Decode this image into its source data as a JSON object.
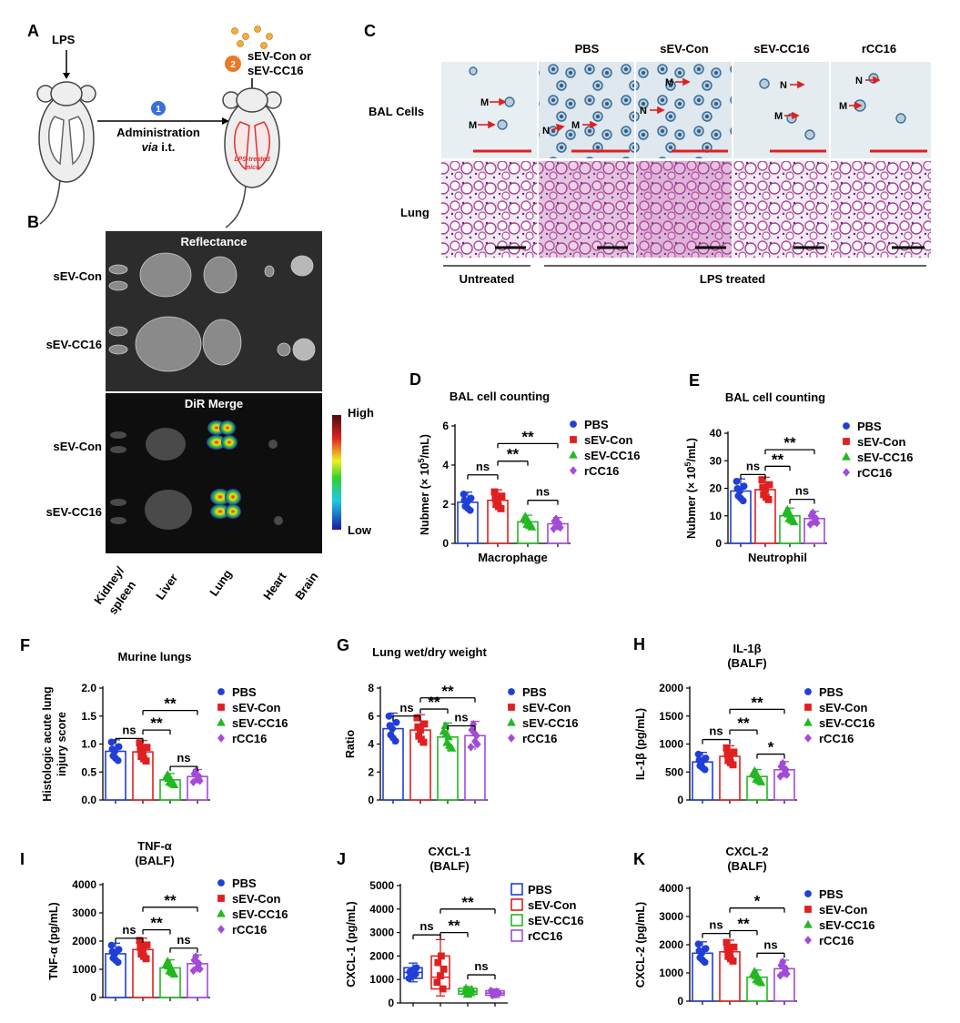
{
  "panelA": {
    "letter": "A",
    "lps": "LPS",
    "step1": "1",
    "step2": "2",
    "treat_line1": "sEV-Con or",
    "treat_line2": "sEV-CC16",
    "admin": "Administration",
    "via_italic": "via",
    "via_rest": " i.t.",
    "mice_line1": "LPS-treated",
    "mice_line2": "mice",
    "colors": {
      "step1": "#3a6fd8",
      "step2": "#e87a2a",
      "lung": "#e03030"
    }
  },
  "panelB": {
    "letter": "B",
    "reflectance": "Reflectance",
    "dir_merge": "DiR Merge",
    "rows": [
      "sEV-Con",
      "sEV-CC16",
      "sEV-Con",
      "sEV-CC16"
    ],
    "colorbar_high": "High",
    "colorbar_low": "Low",
    "organs": [
      "Kidney/",
      "spleen",
      "Liver",
      "Lung",
      "Heart",
      "Brain"
    ]
  },
  "panelC": {
    "letter": "C",
    "columns": [
      "PBS",
      "sEV-Con",
      "sEV-CC16",
      "rCC16"
    ],
    "row_bal": "BAL Cells",
    "row_lung": "Lung",
    "untreated": "Untreated",
    "lps_treated": "LPS treated",
    "cell_labels": [
      "M",
      "M",
      "N",
      "M",
      "M",
      "N",
      "N",
      "M",
      "N",
      "M"
    ]
  },
  "legend": [
    "PBS",
    "sEV-Con",
    "sEV-CC16",
    "rCC16"
  ],
  "series_colors": [
    "#1f3fd6",
    "#e02020",
    "#22b822",
    "#a24bd8"
  ],
  "chart_data": [
    {
      "panel": "D",
      "type": "bar",
      "title": "BAL cell counting",
      "ylabel_pre": "Nubmer (× 10",
      "ylabel_sup": "5",
      "ylabel_post": "/mL)",
      "xlabel": "Macrophage",
      "ylim": [
        0,
        6
      ],
      "yticks": [
        "0",
        "2",
        "4",
        "6"
      ],
      "categories": [
        "PBS",
        "sEV-Con",
        "sEV-CC16",
        "rCC16"
      ],
      "values": [
        2.1,
        2.2,
        1.1,
        1.0
      ],
      "significance": [
        {
          "from": 0,
          "to": 1,
          "label": "ns",
          "y": 3.5
        },
        {
          "from": 1,
          "to": 2,
          "label": "**",
          "y": 4.2
        },
        {
          "from": 2,
          "to": 3,
          "label": "ns",
          "y": 2.2
        },
        {
          "from": 1,
          "to": 3,
          "label": "**",
          "y": 5.1
        }
      ]
    },
    {
      "panel": "E",
      "type": "bar",
      "title": "BAL cell counting",
      "ylabel_pre": "Nubmer (× 10",
      "ylabel_sup": "5",
      "ylabel_post": "/mL)",
      "xlabel": "Neutrophil",
      "ylim": [
        0,
        40
      ],
      "yticks": [
        "0",
        "10",
        "20",
        "30",
        "40"
      ],
      "categories": [
        "PBS",
        "sEV-Con",
        "sEV-CC16",
        "rCC16"
      ],
      "values": [
        19,
        19.5,
        10,
        9
      ],
      "significance": [
        {
          "from": 0,
          "to": 1,
          "label": "ns",
          "y": 25
        },
        {
          "from": 1,
          "to": 2,
          "label": "**",
          "y": 28
        },
        {
          "from": 2,
          "to": 3,
          "label": "ns",
          "y": 16
        },
        {
          "from": 1,
          "to": 3,
          "label": "**",
          "y": 34
        }
      ]
    },
    {
      "panel": "F",
      "type": "bar",
      "title": "Murine lungs",
      "ylabel_line1": "Histologic acute lung",
      "ylabel_line2": "injury score",
      "ylim": [
        0,
        2.0
      ],
      "yticks": [
        "0.0",
        "0.5",
        "1.0",
        "1.5",
        "2.0"
      ],
      "categories": [
        "PBS",
        "sEV-Con",
        "sEV-CC16",
        "rCC16"
      ],
      "values": [
        0.87,
        0.86,
        0.36,
        0.42
      ],
      "significance": [
        {
          "from": 0,
          "to": 1,
          "label": "ns",
          "y": 1.1
        },
        {
          "from": 1,
          "to": 2,
          "label": "**",
          "y": 1.25
        },
        {
          "from": 2,
          "to": 3,
          "label": "ns",
          "y": 0.6
        },
        {
          "from": 1,
          "to": 3,
          "label": "**",
          "y": 1.6
        }
      ]
    },
    {
      "panel": "G",
      "type": "bar",
      "title": "Lung wet/dry weight",
      "ylabel": "Ratio",
      "ylim": [
        0,
        8
      ],
      "yticks": [
        "0",
        "2",
        "4",
        "6",
        "8"
      ],
      "categories": [
        "PBS",
        "sEV-Con",
        "sEV-CC16",
        "rCC16"
      ],
      "values": [
        5.1,
        5.0,
        4.5,
        4.6
      ],
      "significance": [
        {
          "from": 0,
          "to": 1,
          "label": "ns",
          "y": 6.0
        },
        {
          "from": 1,
          "to": 2,
          "label": "**",
          "y": 6.5
        },
        {
          "from": 2,
          "to": 3,
          "label": "ns",
          "y": 5.3
        },
        {
          "from": 1,
          "to": 3,
          "label": "**",
          "y": 7.3
        }
      ]
    },
    {
      "panel": "H",
      "type": "bar",
      "title_line1": "IL-1β",
      "title_line2": "(BALF)",
      "ylabel": "IL-1β (pg/mL)",
      "ylim": [
        0,
        2000
      ],
      "yticks": [
        "0",
        "500",
        "1000",
        "1500",
        "2000"
      ],
      "categories": [
        "PBS",
        "sEV-Con",
        "sEV-CC16",
        "rCC16"
      ],
      "values": [
        680,
        780,
        420,
        540
      ],
      "significance": [
        {
          "from": 0,
          "to": 1,
          "label": "ns",
          "y": 1080
        },
        {
          "from": 1,
          "to": 2,
          "label": "**",
          "y": 1250
        },
        {
          "from": 2,
          "to": 3,
          "label": "*",
          "y": 820
        },
        {
          "from": 1,
          "to": 3,
          "label": "**",
          "y": 1620
        }
      ]
    },
    {
      "panel": "I",
      "type": "bar",
      "title_line1": "TNF-α",
      "title_line2": "(BALF)",
      "ylabel": "TNF-α (pg/mL)",
      "ylim": [
        0,
        4000
      ],
      "yticks": [
        "0",
        "1000",
        "2000",
        "3000",
        "4000"
      ],
      "categories": [
        "PBS",
        "sEV-Con",
        "sEV-CC16",
        "rCC16"
      ],
      "values": [
        1550,
        1700,
        1050,
        1200
      ],
      "significance": [
        {
          "from": 0,
          "to": 1,
          "label": "ns",
          "y": 2100
        },
        {
          "from": 1,
          "to": 2,
          "label": "**",
          "y": 2400
        },
        {
          "from": 2,
          "to": 3,
          "label": "ns",
          "y": 1750
        },
        {
          "from": 1,
          "to": 3,
          "label": "**",
          "y": 3200
        }
      ]
    },
    {
      "panel": "J",
      "type": "box",
      "title_line1": "CXCL-1",
      "title_line2": "(BALF)",
      "ylabel": "CXCL-1 (pg/mL)",
      "ylim": [
        0,
        5000
      ],
      "yticks": [
        "0",
        "1000",
        "2000",
        "3000",
        "4000",
        "5000"
      ],
      "categories": [
        "PBS",
        "sEV-Con",
        "sEV-CC16",
        "rCC16"
      ],
      "boxes": [
        {
          "min": 900,
          "q1": 1050,
          "median": 1300,
          "q3": 1500,
          "max": 1700
        },
        {
          "min": 300,
          "q1": 600,
          "median": 1100,
          "q3": 2000,
          "max": 2700
        },
        {
          "min": 250,
          "q1": 380,
          "median": 500,
          "q3": 620,
          "max": 700
        },
        {
          "min": 230,
          "q1": 330,
          "median": 420,
          "q3": 520,
          "max": 600
        }
      ],
      "significance": [
        {
          "from": 0,
          "to": 1,
          "label": "ns",
          "y": 2900
        },
        {
          "from": 1,
          "to": 2,
          "label": "**",
          "y": 3000
        },
        {
          "from": 2,
          "to": 3,
          "label": "ns",
          "y": 1200
        },
        {
          "from": 1,
          "to": 3,
          "label": "**",
          "y": 4000
        }
      ]
    },
    {
      "panel": "K",
      "type": "bar",
      "title_line1": "CXCL-2",
      "title_line2": "(BALF)",
      "ylabel": "CXCL-2 (pg/mL)",
      "ylim": [
        0,
        4000
      ],
      "yticks": [
        "0",
        "1000",
        "2000",
        "3000",
        "4000"
      ],
      "categories": [
        "PBS",
        "sEV-Con",
        "sEV-CC16",
        "rCC16"
      ],
      "values": [
        1700,
        1750,
        850,
        1150
      ],
      "significance": [
        {
          "from": 0,
          "to": 1,
          "label": "ns",
          "y": 2400
        },
        {
          "from": 1,
          "to": 2,
          "label": "**",
          "y": 2500
        },
        {
          "from": 2,
          "to": 3,
          "label": "ns",
          "y": 1700
        },
        {
          "from": 1,
          "to": 3,
          "label": "*",
          "y": 3300
        }
      ]
    }
  ]
}
